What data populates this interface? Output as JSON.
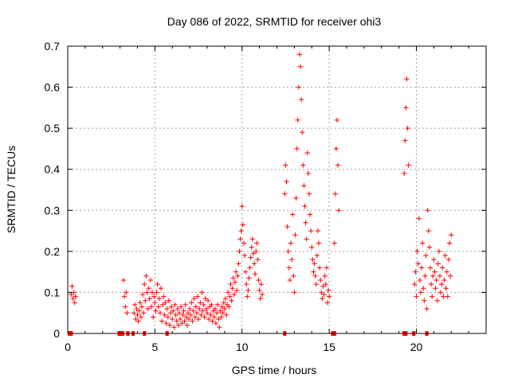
{
  "chart_data": {
    "type": "scatter",
    "title": "Day 086 of 2022, SRMTID for receiver ohi3",
    "xlabel": "GPS time / hours",
    "ylabel": "SRMTID / TECUs",
    "xlim": [
      0,
      24
    ],
    "ylim": [
      0,
      0.7
    ],
    "x_ticks": [
      0,
      5,
      10,
      15,
      20
    ],
    "x_tick_labels": [
      "0",
      "5",
      "10",
      "15",
      "20"
    ],
    "y_ticks": [
      0,
      0.1,
      0.2,
      0.3,
      0.4,
      0.5,
      0.6,
      0.7
    ],
    "y_tick_labels": [
      "0",
      "0.1",
      "0.2",
      "0.3",
      "0.4",
      "0.5",
      "0.6",
      "0.7"
    ],
    "grid": true,
    "marker": "+",
    "color": "#ff0000",
    "zero_markers": [
      0.1,
      0.2,
      2.95,
      3.05,
      3.15,
      3.45,
      3.75,
      4.4,
      5.7,
      12.45,
      15.2,
      15.3,
      19.3,
      19.4,
      19.85,
      20.6
    ],
    "series": [
      {
        "name": "SRMTID",
        "points": [
          [
            0.2,
            0.095
          ],
          [
            0.25,
            0.115
          ],
          [
            0.3,
            0.085
          ],
          [
            0.35,
            0.1
          ],
          [
            0.4,
            0.075
          ],
          [
            0.45,
            0.09
          ],
          [
            3.2,
            0.13
          ],
          [
            3.25,
            0.09
          ],
          [
            3.3,
            0.065
          ],
          [
            3.35,
            0.1
          ],
          [
            3.4,
            0.05
          ],
          [
            3.8,
            0.05
          ],
          [
            3.85,
            0.07
          ],
          [
            3.9,
            0.035
          ],
          [
            3.95,
            0.06
          ],
          [
            4.0,
            0.045
          ],
          [
            4.05,
            0.03
          ],
          [
            4.1,
            0.055
          ],
          [
            4.15,
            0.075
          ],
          [
            4.2,
            0.04
          ],
          [
            4.25,
            0.065
          ],
          [
            4.3,
            0.095
          ],
          [
            4.35,
            0.05
          ],
          [
            4.4,
            0.12
          ],
          [
            4.45,
            0.08
          ],
          [
            4.5,
            0.14
          ],
          [
            4.55,
            0.1
          ],
          [
            4.6,
            0.06
          ],
          [
            4.65,
            0.11
          ],
          [
            4.7,
            0.085
          ],
          [
            4.75,
            0.13
          ],
          [
            4.8,
            0.065
          ],
          [
            4.85,
            0.1
          ],
          [
            4.9,
            0.04
          ],
          [
            4.95,
            0.09
          ],
          [
            5.0,
            0.075
          ],
          [
            5.05,
            0.055
          ],
          [
            5.1,
            0.1
          ],
          [
            5.15,
            0.12
          ],
          [
            5.2,
            0.065
          ],
          [
            5.25,
            0.085
          ],
          [
            5.3,
            0.05
          ],
          [
            5.35,
            0.11
          ],
          [
            5.4,
            0.03
          ],
          [
            5.45,
            0.07
          ],
          [
            5.5,
            0.09
          ],
          [
            5.55,
            0.045
          ],
          [
            5.6,
            0.075
          ],
          [
            5.65,
            0.025
          ],
          [
            5.7,
            0.06
          ],
          [
            5.75,
            0.04
          ],
          [
            5.8,
            0.08
          ],
          [
            5.85,
            0.02
          ],
          [
            5.9,
            0.05
          ],
          [
            5.95,
            0.065
          ],
          [
            6.0,
            0.035
          ],
          [
            6.05,
            0.055
          ],
          [
            6.1,
            0.015
          ],
          [
            6.15,
            0.07
          ],
          [
            6.2,
            0.045
          ],
          [
            6.25,
            0.03
          ],
          [
            6.3,
            0.06
          ],
          [
            6.35,
            0.02
          ],
          [
            6.4,
            0.05
          ],
          [
            6.45,
            0.035
          ],
          [
            6.5,
            0.065
          ],
          [
            6.55,
            0.025
          ],
          [
            6.6,
            0.045
          ],
          [
            6.65,
            0.055
          ],
          [
            6.7,
            0.03
          ],
          [
            6.75,
            0.07
          ],
          [
            6.8,
            0.04
          ],
          [
            6.85,
            0.02
          ],
          [
            6.9,
            0.05
          ],
          [
            6.95,
            0.035
          ],
          [
            7.0,
            0.06
          ],
          [
            7.05,
            0.045
          ],
          [
            7.1,
            0.075
          ],
          [
            7.15,
            0.03
          ],
          [
            7.2,
            0.055
          ],
          [
            7.25,
            0.085
          ],
          [
            7.3,
            0.04
          ],
          [
            7.35,
            0.065
          ],
          [
            7.4,
            0.05
          ],
          [
            7.45,
            0.09
          ],
          [
            7.5,
            0.035
          ],
          [
            7.55,
            0.06
          ],
          [
            7.6,
            0.075
          ],
          [
            7.65,
            0.045
          ],
          [
            7.7,
            0.1
          ],
          [
            7.75,
            0.055
          ],
          [
            7.8,
            0.07
          ],
          [
            7.85,
            0.04
          ],
          [
            7.9,
            0.085
          ],
          [
            7.95,
            0.06
          ],
          [
            8.0,
            0.05
          ],
          [
            8.05,
            0.08
          ],
          [
            8.1,
            0.035
          ],
          [
            8.15,
            0.065
          ],
          [
            8.2,
            0.045
          ],
          [
            8.25,
            0.07
          ],
          [
            8.3,
            0.03
          ],
          [
            8.35,
            0.055
          ],
          [
            8.4,
            0.04
          ],
          [
            8.45,
            0.06
          ],
          [
            8.5,
            0.025
          ],
          [
            8.55,
            0.05
          ],
          [
            8.6,
            0.07
          ],
          [
            8.65,
            0.035
          ],
          [
            8.7,
            0.015
          ],
          [
            8.75,
            0.055
          ],
          [
            8.8,
            0.04
          ],
          [
            8.85,
            0.065
          ],
          [
            8.9,
            0.05
          ],
          [
            8.95,
            0.075
          ],
          [
            9.0,
            0.06
          ],
          [
            9.05,
            0.085
          ],
          [
            9.1,
            0.045
          ],
          [
            9.15,
            0.07
          ],
          [
            9.2,
            0.1
          ],
          [
            9.25,
            0.065
          ],
          [
            9.3,
            0.09
          ],
          [
            9.35,
            0.12
          ],
          [
            9.4,
            0.08
          ],
          [
            9.45,
            0.11
          ],
          [
            9.5,
            0.135
          ],
          [
            9.55,
            0.095
          ],
          [
            9.6,
            0.125
          ],
          [
            9.65,
            0.15
          ],
          [
            9.7,
            0.105
          ],
          [
            9.75,
            0.14
          ],
          [
            9.8,
            0.17
          ],
          [
            9.85,
            0.2
          ],
          [
            9.9,
            0.23
          ],
          [
            9.95,
            0.25
          ],
          [
            10.0,
            0.31
          ],
          [
            10.05,
            0.265
          ],
          [
            10.1,
            0.22
          ],
          [
            10.15,
            0.19
          ],
          [
            10.2,
            0.15
          ],
          [
            10.25,
            0.12
          ],
          [
            10.3,
            0.09
          ],
          [
            10.35,
            0.105
          ],
          [
            10.4,
            0.135
          ],
          [
            10.45,
            0.16
          ],
          [
            10.5,
            0.185
          ],
          [
            10.55,
            0.21
          ],
          [
            10.6,
            0.23
          ],
          [
            10.65,
            0.195
          ],
          [
            10.7,
            0.17
          ],
          [
            10.75,
            0.145
          ],
          [
            10.8,
            0.2
          ],
          [
            10.85,
            0.22
          ],
          [
            10.9,
            0.18
          ],
          [
            10.95,
            0.13
          ],
          [
            11.0,
            0.105
          ],
          [
            11.05,
            0.085
          ],
          [
            11.1,
            0.12
          ],
          [
            11.15,
            0.095
          ],
          [
            12.45,
            0.34
          ],
          [
            12.5,
            0.41
          ],
          [
            12.55,
            0.37
          ],
          [
            12.6,
            0.26
          ],
          [
            12.65,
            0.2
          ],
          [
            12.7,
            0.16
          ],
          [
            12.75,
            0.13
          ],
          [
            12.8,
            0.22
          ],
          [
            12.85,
            0.18
          ],
          [
            12.9,
            0.29
          ],
          [
            12.95,
            0.14
          ],
          [
            13.0,
            0.1
          ],
          [
            13.05,
            0.24
          ],
          [
            13.1,
            0.33
          ],
          [
            13.15,
            0.45
          ],
          [
            13.2,
            0.52
          ],
          [
            13.25,
            0.6
          ],
          [
            13.3,
            0.68
          ],
          [
            13.35,
            0.65
          ],
          [
            13.4,
            0.57
          ],
          [
            13.45,
            0.49
          ],
          [
            13.5,
            0.41
          ],
          [
            13.55,
            0.36
          ],
          [
            13.6,
            0.31
          ],
          [
            13.65,
            0.27
          ],
          [
            13.7,
            0.23
          ],
          [
            13.75,
            0.44
          ],
          [
            13.8,
            0.39
          ],
          [
            13.85,
            0.34
          ],
          [
            13.9,
            0.29
          ],
          [
            13.95,
            0.25
          ],
          [
            14.0,
            0.21
          ],
          [
            14.05,
            0.18
          ],
          [
            14.1,
            0.15
          ],
          [
            14.15,
            0.17
          ],
          [
            14.2,
            0.14
          ],
          [
            14.25,
            0.12
          ],
          [
            14.3,
            0.19
          ],
          [
            14.35,
            0.25
          ],
          [
            14.4,
            0.22
          ],
          [
            14.45,
            0.16
          ],
          [
            14.5,
            0.13
          ],
          [
            14.55,
            0.1
          ],
          [
            14.6,
            0.085
          ],
          [
            14.65,
            0.115
          ],
          [
            14.7,
            0.095
          ],
          [
            14.75,
            0.14
          ],
          [
            14.8,
            0.12
          ],
          [
            14.85,
            0.16
          ],
          [
            14.9,
            0.075
          ],
          [
            14.95,
            0.105
          ],
          [
            15.0,
            0.09
          ],
          [
            15.3,
            0.22
          ],
          [
            15.35,
            0.34
          ],
          [
            15.4,
            0.45
          ],
          [
            15.45,
            0.52
          ],
          [
            15.5,
            0.41
          ],
          [
            15.55,
            0.3
          ],
          [
            19.3,
            0.39
          ],
          [
            19.35,
            0.47
          ],
          [
            19.4,
            0.55
          ],
          [
            19.45,
            0.62
          ],
          [
            19.5,
            0.5
          ],
          [
            19.55,
            0.41
          ],
          [
            19.9,
            0.12
          ],
          [
            19.95,
            0.15
          ],
          [
            20.0,
            0.09
          ],
          [
            20.05,
            0.2
          ],
          [
            20.1,
            0.17
          ],
          [
            20.15,
            0.28
          ],
          [
            20.2,
            0.13
          ],
          [
            20.25,
            0.1
          ],
          [
            20.3,
            0.16
          ],
          [
            20.35,
            0.22
          ],
          [
            20.4,
            0.11
          ],
          [
            20.45,
            0.08
          ],
          [
            20.5,
            0.14
          ],
          [
            20.55,
            0.19
          ],
          [
            20.6,
            0.06
          ],
          [
            20.65,
            0.3
          ],
          [
            20.7,
            0.25
          ],
          [
            20.75,
            0.21
          ],
          [
            20.8,
            0.16
          ],
          [
            20.85,
            0.12
          ],
          [
            20.9,
            0.09
          ],
          [
            20.95,
            0.14
          ],
          [
            21.0,
            0.18
          ],
          [
            21.05,
            0.15
          ],
          [
            21.1,
            0.11
          ],
          [
            21.15,
            0.13
          ],
          [
            21.2,
            0.08
          ],
          [
            21.25,
            0.17
          ],
          [
            21.3,
            0.2
          ],
          [
            21.35,
            0.14
          ],
          [
            21.4,
            0.1
          ],
          [
            21.45,
            0.12
          ],
          [
            21.5,
            0.16
          ],
          [
            21.55,
            0.09
          ],
          [
            21.6,
            0.13
          ],
          [
            21.65,
            0.19
          ],
          [
            21.7,
            0.11
          ],
          [
            21.75,
            0.15
          ],
          [
            21.8,
            0.09
          ],
          [
            21.85,
            0.18
          ],
          [
            21.9,
            0.22
          ],
          [
            21.95,
            0.14
          ],
          [
            22.0,
            0.24
          ]
        ]
      }
    ]
  }
}
